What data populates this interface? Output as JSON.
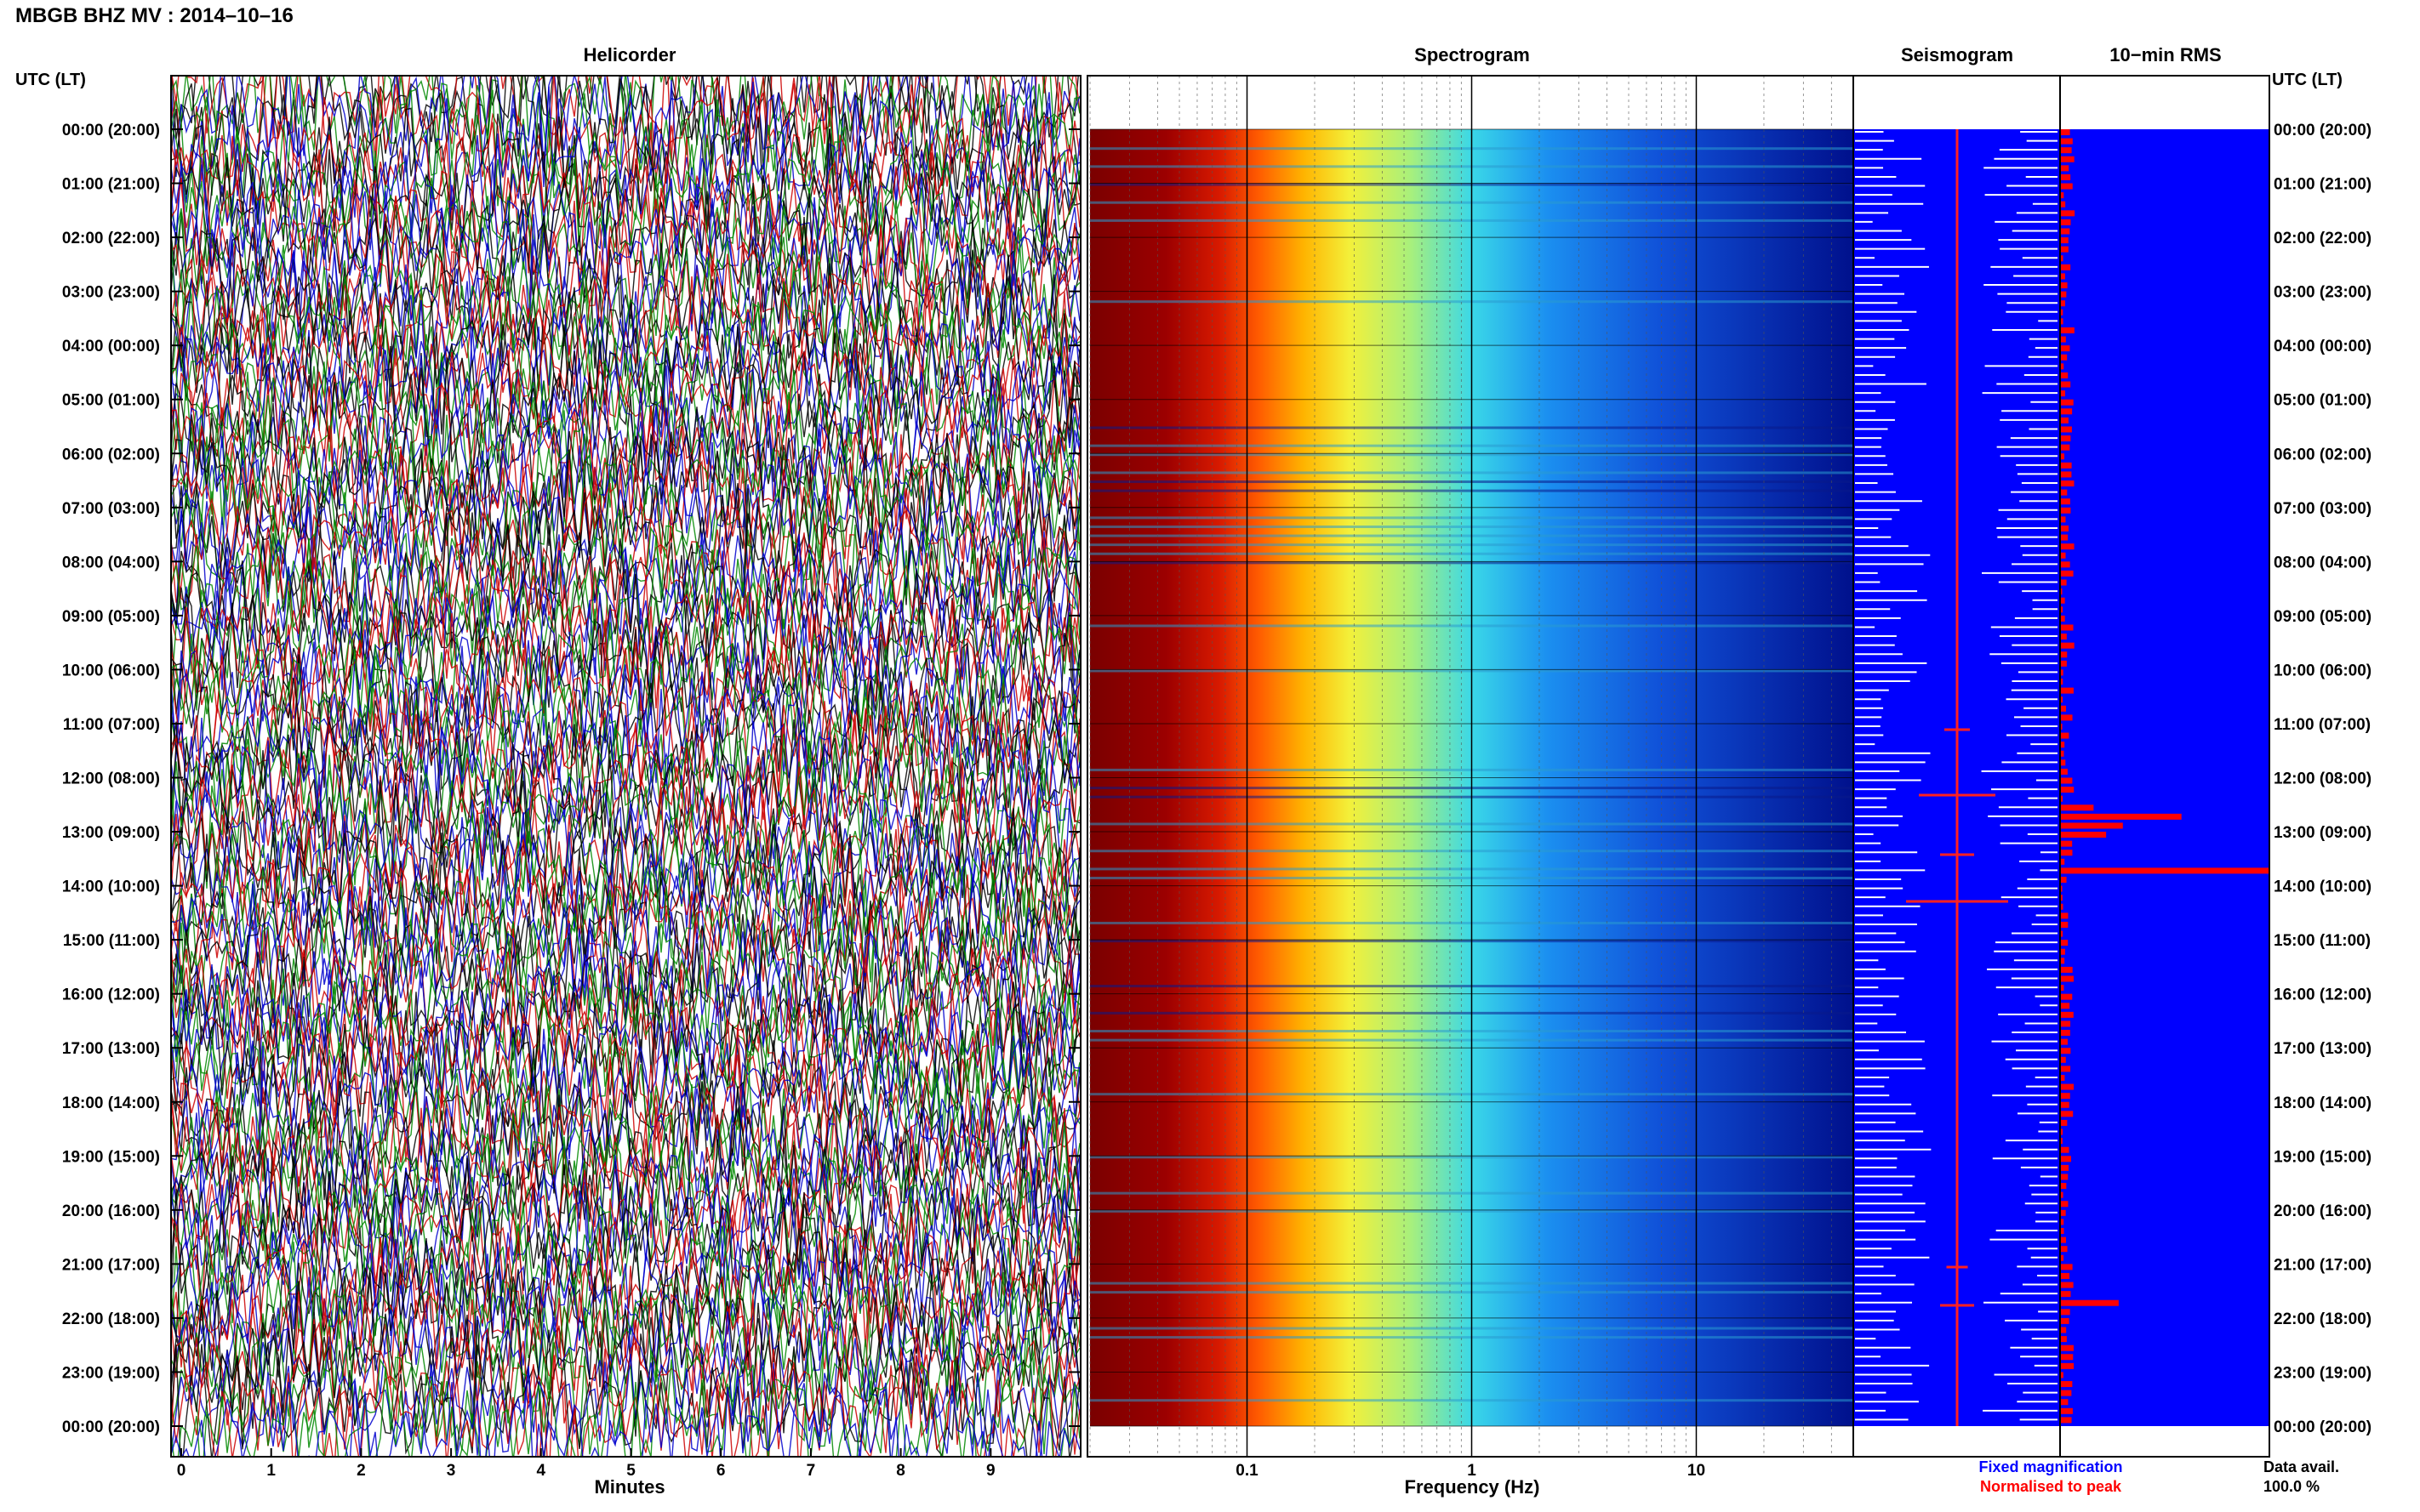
{
  "header": {
    "station_title": "MBGB BHZ MV : 2014–10–16"
  },
  "panels": {
    "helicorder": "Helicorder",
    "spectrogram": "Spectrogram",
    "seismogram": "Seismogram",
    "rms": "10−min RMS"
  },
  "axis": {
    "utc_label_left": "UTC (LT)",
    "utc_label_right": "UTC (LT)",
    "minutes_label": "Minutes",
    "frequency_label": "Frequency (Hz)"
  },
  "legend": {
    "fixed": "Fixed magnification",
    "normalised": "Normalised to peak",
    "data_avail_label": "Data avail.",
    "data_avail_value": "100.0 %"
  },
  "colors": {
    "seismogram_background": "#0000ff",
    "rms_background": "#0000ff",
    "rms_bar": "#ff0000",
    "helicorder_traces": [
      "#000000",
      "#cc0000",
      "#008800",
      "#0000cc"
    ]
  },
  "chart_data": [
    {
      "type": "line",
      "title": "Helicorder",
      "xlabel": "Minutes",
      "x_ticks": [
        "0",
        "1",
        "2",
        "3",
        "4",
        "5",
        "6",
        "7",
        "8",
        "9"
      ],
      "xlim": [
        0,
        10
      ],
      "time_ticks": [
        "00:00 (20:00)",
        "01:00 (21:00)",
        "02:00 (22:00)",
        "03:00 (23:00)",
        "04:00 (00:00)",
        "05:00 (01:00)",
        "06:00 (02:00)",
        "07:00 (03:00)",
        "08:00 (04:00)",
        "09:00 (05:00)",
        "10:00 (06:00)",
        "11:00 (07:00)",
        "12:00 (08:00)",
        "13:00 (09:00)",
        "14:00 (10:00)",
        "15:00 (11:00)",
        "16:00 (12:00)",
        "17:00 (13:00)",
        "18:00 (14:00)",
        "19:00 (15:00)",
        "20:00 (16:00)",
        "21:00 (17:00)",
        "22:00 (18:00)",
        "23:00 (19:00)",
        "00:00 (20:00)"
      ]
    },
    {
      "type": "heatmap",
      "title": "Spectrogram",
      "xlabel": "Frequency (Hz)",
      "x_scale": "log",
      "x_ticks": [
        0.1,
        1,
        10
      ],
      "x_tick_labels": [
        "0.1",
        "1",
        "10"
      ],
      "xlim": [
        0.02,
        50
      ]
    },
    {
      "type": "line",
      "title": "Seismogram",
      "legend": [
        "Fixed magnification",
        "Normalised to peak"
      ]
    },
    {
      "type": "bar",
      "title": "10−min RMS",
      "note_values": "relative RMS per 10-min window, 0-1, 144 windows",
      "peaks": [
        {
          "time": "12:00-13:00",
          "value": 0.58
        },
        {
          "time": "13:40",
          "value": 1.0
        },
        {
          "time": "21:40",
          "value": 0.28
        }
      ]
    }
  ]
}
